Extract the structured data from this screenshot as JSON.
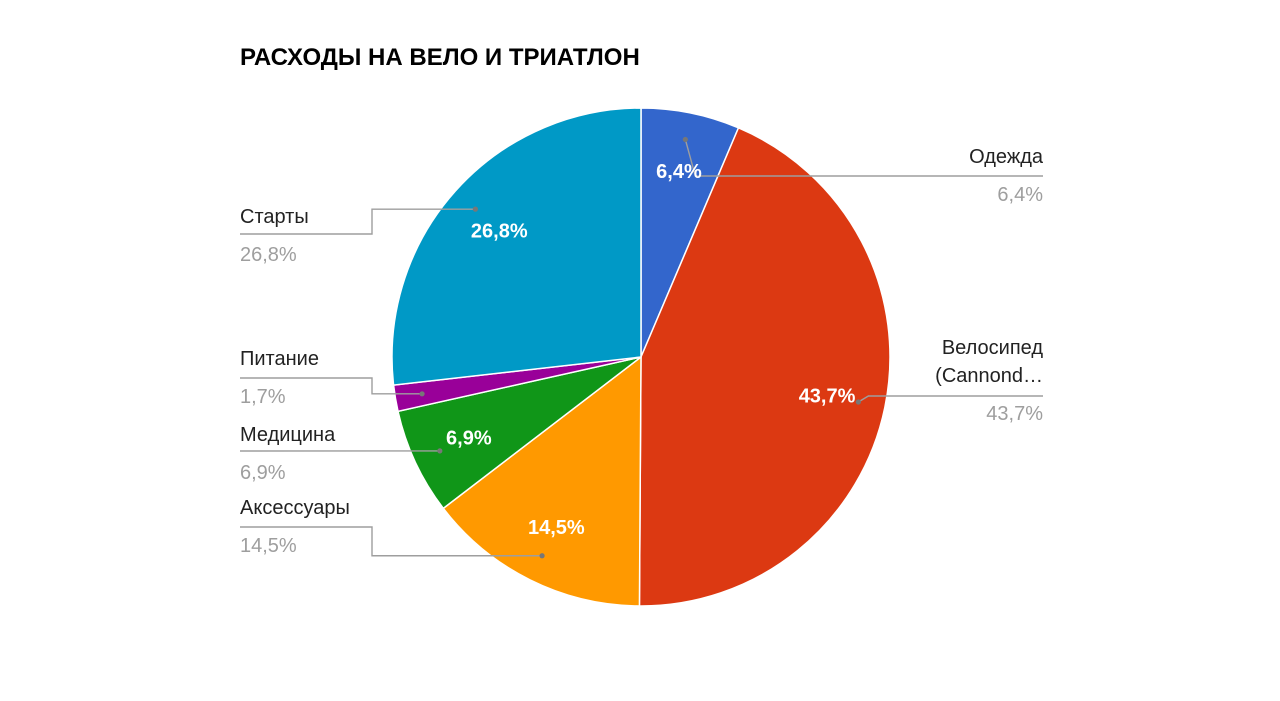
{
  "chart_data": {
    "type": "pie",
    "title": "РАСХОДЫ НА ВЕЛО И ТРИАТЛОН",
    "legend": "labeled",
    "slices": [
      {
        "label": "Одежда",
        "value": 6.4,
        "pct_label": "6,4%",
        "color": "#3366cc"
      },
      {
        "label": "Велосипед (Cannond…",
        "label_lines": [
          "Велосипед",
          "(Cannond…"
        ],
        "value": 43.7,
        "pct_label": "43,7%",
        "color": "#dc3912"
      },
      {
        "label": "Аксессуары",
        "value": 14.5,
        "pct_label": "14,5%",
        "color": "#ff9900"
      },
      {
        "label": "Медицина",
        "value": 6.9,
        "pct_label": "6,9%",
        "color": "#109618"
      },
      {
        "label": "Питание",
        "value": 1.7,
        "pct_label": "1,7%",
        "color": "#990099"
      },
      {
        "label": "Старты",
        "value": 26.8,
        "pct_label": "26,8%",
        "color": "#0099c6"
      }
    ]
  }
}
